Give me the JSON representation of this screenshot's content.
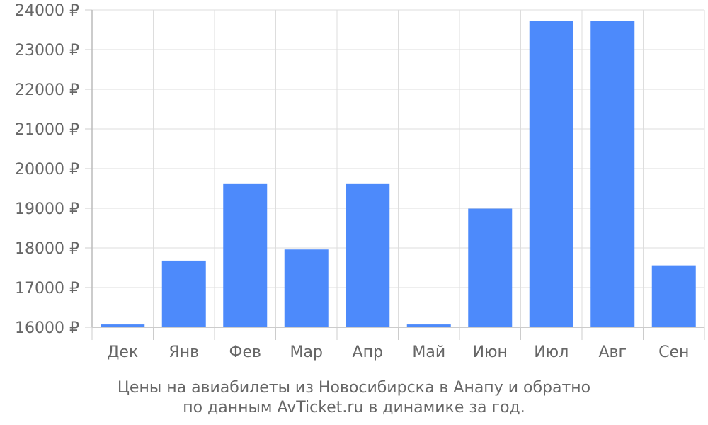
{
  "chart_data": {
    "type": "bar",
    "categories": [
      "Дек",
      "Янв",
      "Фев",
      "Мар",
      "Апр",
      "Май",
      "Июн",
      "Июл",
      "Авг",
      "Сен"
    ],
    "values": [
      16070,
      17680,
      19610,
      17960,
      19610,
      16070,
      18990,
      23730,
      23730,
      17560
    ],
    "ylim": [
      16000,
      24000
    ],
    "yticks": [
      16000,
      17000,
      18000,
      19000,
      20000,
      21000,
      22000,
      23000,
      24000
    ],
    "ytick_labels": [
      "16000 ₽",
      "17000 ₽",
      "18000 ₽",
      "19000 ₽",
      "20000 ₽",
      "21000 ₽",
      "22000 ₽",
      "23000 ₽",
      "24000 ₽"
    ],
    "grid": true,
    "bar_color": "#4d8afb",
    "title_lines": [
      "Цены на авиабилеты из Новосибирска в Анапу и обратно",
      "по данным AvTicket.ru в динамике за год."
    ]
  }
}
